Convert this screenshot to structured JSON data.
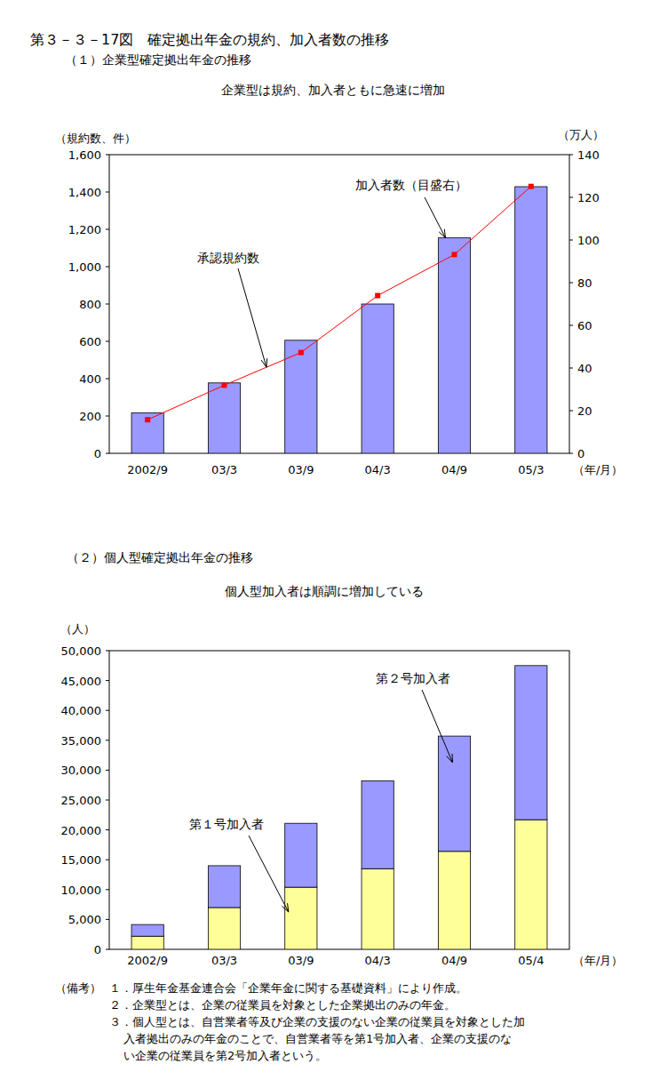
{
  "title": "第３－３－17図　確定拠出年金の規約、加入者数の推移",
  "chart_data": [
    {
      "type": "bar",
      "title": "（１）企業型確定拠出年金の推移",
      "subtitle": "企業型は規約、加入者ともに急速に増加",
      "categories": [
        "2002/9",
        "03/3",
        "03/9",
        "04/3",
        "04/9",
        "05/3"
      ],
      "x_label": "（年/月）",
      "y_label": "（規約数、件）",
      "y2_label": "（万人）",
      "ylim": [
        0,
        1600
      ],
      "yticks": [
        0,
        200,
        400,
        600,
        800,
        {
          "value": 1000,
          "label": "1,000"
        },
        {
          "value": 1200,
          "label": "1,200"
        },
        {
          "value": 1400,
          "label": "1,400"
        },
        {
          "value": 1600,
          "label": "1,600"
        }
      ],
      "y2lim": [
        0,
        140
      ],
      "y2ticks": [
        0,
        20,
        40,
        60,
        80,
        100,
        120,
        140
      ],
      "series": [
        {
          "name": "加入者数（目盛右）",
          "type": "bar",
          "axis": "y2",
          "color": "#9999ff",
          "values": [
            19,
            33,
            53,
            70,
            101,
            125
          ]
        },
        {
          "name": "承認規約数",
          "type": "line",
          "color": "#ff0000",
          "marker": "square",
          "values": [
            180,
            365,
            540,
            845,
            1065,
            1430
          ]
        }
      ]
    },
    {
      "type": "bar",
      "stacked": true,
      "title": "（２）個人型確定拠出年金の推移",
      "subtitle": "個人型加入者は順調に増加している",
      "categories": [
        "2002/9",
        "03/3",
        "03/9",
        "04/3",
        "04/9",
        "05/4"
      ],
      "x_label": "（年/月）",
      "y_label": "（人）",
      "ylim": [
        0,
        50000
      ],
      "yticks": [
        0,
        {
          "value": 5000,
          "label": "5,000"
        },
        {
          "value": 10000,
          "label": "10,000"
        },
        {
          "value": 15000,
          "label": "15,000"
        },
        {
          "value": 20000,
          "label": "20,000"
        },
        {
          "value": 25000,
          "label": "25,000"
        },
        {
          "value": 30000,
          "label": "30,000"
        },
        {
          "value": 35000,
          "label": "35,000"
        },
        {
          "value": 40000,
          "label": "40,000"
        },
        {
          "value": 45000,
          "label": "45,000"
        },
        {
          "value": 50000,
          "label": "50,000"
        }
      ],
      "series": [
        {
          "name": "第１号加入者",
          "color": "#ffff99",
          "values": [
            2200,
            7000,
            10400,
            13500,
            16400,
            21700
          ]
        },
        {
          "name": "第２号加入者",
          "color": "#9999ff",
          "values": [
            1950,
            7000,
            10700,
            14700,
            19300,
            25800
          ]
        }
      ]
    }
  ],
  "notes": {
    "label": "（備考）",
    "items": [
      [
        "１．厚生年金基金連合会「企業年金に関する基礎資料」により作成。"
      ],
      [
        "２．企業型とは、企業の従業員を対象とした企業拠出のみの年金。"
      ],
      [
        "３．個人型とは、自営業者等及び企業の支援のない企業の従業員を対象とした加",
        "入者拠出のみの年金のことで、自営業者等を第1号加入者、企業の支援のな",
        "い企業の従業員を第2号加入者という。"
      ]
    ]
  }
}
